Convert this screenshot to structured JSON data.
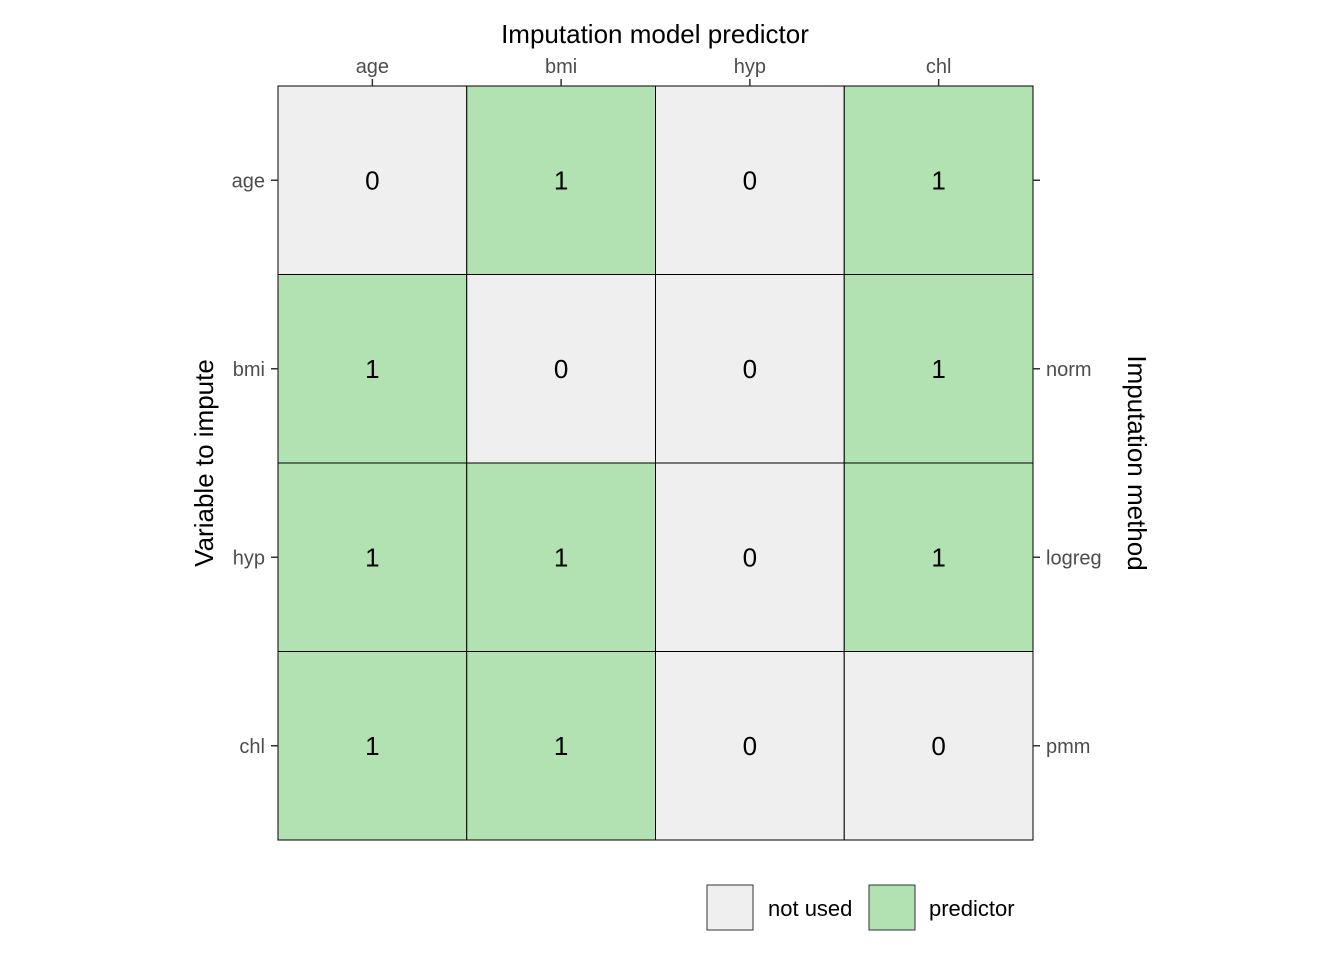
{
  "chart_data": {
    "type": "heatmap",
    "title": "Imputation model predictor",
    "xlabel": "Imputation model predictor",
    "ylabel": "Variable to impute",
    "y2label": "Imputation method",
    "columns": [
      "age",
      "bmi",
      "hyp",
      "chl"
    ],
    "rows": [
      "age",
      "bmi",
      "hyp",
      "chl"
    ],
    "methods": [
      "",
      "norm",
      "logreg",
      "pmm"
    ],
    "values": [
      [
        0,
        1,
        0,
        1
      ],
      [
        1,
        0,
        0,
        1
      ],
      [
        1,
        1,
        0,
        1
      ],
      [
        1,
        1,
        0,
        0
      ]
    ],
    "legend": [
      {
        "label": "not used",
        "value": 0,
        "color": "#efefef"
      },
      {
        "label": "predictor",
        "value": 1,
        "color": "#b2e2b2"
      }
    ],
    "legend_position": "bottom-right",
    "colors": {
      "not_used": "#efefef",
      "predictor": "#b2e2b2",
      "border": "#000000",
      "tick_text": "#4d4d4d"
    },
    "grid": false
  }
}
